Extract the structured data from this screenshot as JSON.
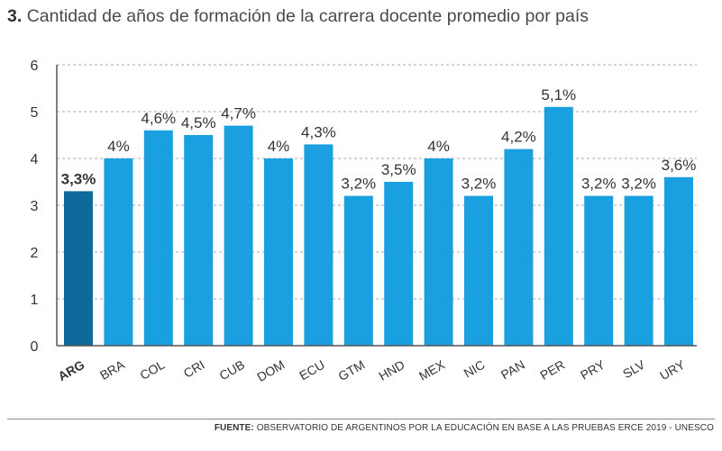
{
  "header": {
    "number": "3.",
    "title": "Cantidad de años de formación de la carrera docente promedio por país"
  },
  "chart_data": {
    "type": "bar",
    "categories": [
      "ARG",
      "BRA",
      "COL",
      "CRI",
      "CUB",
      "DOM",
      "ECU",
      "GTM",
      "HND",
      "MEX",
      "NIC",
      "PAN",
      "PER",
      "PRY",
      "SLV",
      "URY"
    ],
    "values": [
      3.3,
      4,
      4.6,
      4.5,
      4.7,
      4,
      4.3,
      3.2,
      3.5,
      4,
      3.2,
      4.2,
      5.1,
      3.2,
      3.2,
      3.6
    ],
    "data_labels": [
      "3,3%",
      "4%",
      "4,6%",
      "4,5%",
      "4,7%",
      "4%",
      "4,3%",
      "3,2%",
      "3,5%",
      "4%",
      "3,2%",
      "4,2%",
      "5,1%",
      "3,2%",
      "3,2%",
      "3,6%"
    ],
    "highlight_category": "ARG",
    "ylim": [
      0,
      6
    ],
    "yticks": [
      0,
      1,
      2,
      3,
      4,
      5,
      6
    ],
    "grid": "horizontal dashed",
    "colors": {
      "bar": "#1a9fe0",
      "highlight": "#0d6a9a",
      "grid": "#a8a8a8",
      "axis": "#555555",
      "label": "#333333"
    }
  },
  "footer": {
    "source_label": "FUENTE:",
    "source_text": "OBSERVATORIO DE ARGENTINOS POR LA EDUCACIÓN EN BASE A LAS PRUEBAS ERCE 2019 - UNESCO"
  }
}
